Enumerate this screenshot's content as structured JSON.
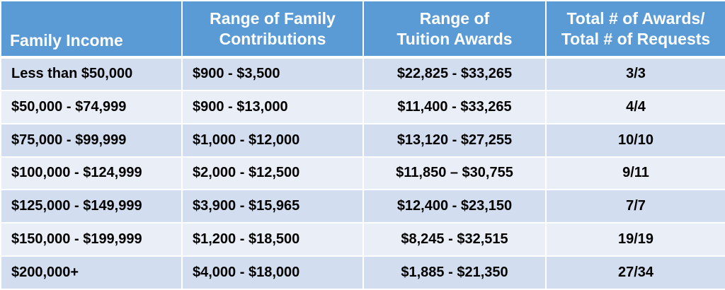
{
  "headers": {
    "family_income": "Family Income",
    "contributions_line1": "Range of Family",
    "contributions_line2": "Contributions",
    "tuition_line1": "Range of",
    "tuition_line2": "Tuition Awards",
    "awards_line1": "Total # of Awards/",
    "awards_line2": "Total # of Requests"
  },
  "rows": [
    {
      "income": "Less than $50,000",
      "contributions": "$900 - $3,500",
      "tuition": "$22,825 - $33,265",
      "awards": "3/3"
    },
    {
      "income": "$50,000 - $74,999",
      "contributions": "$900 - $13,000",
      "tuition": "$11,400 - $33,265",
      "awards": "4/4"
    },
    {
      "income": "$75,000 - $99,999",
      "contributions": "$1,000 - $12,000",
      "tuition": "$13,120 - $27,255",
      "awards": "10/10"
    },
    {
      "income": "$100,000 - $124,999",
      "contributions": "$2,000 - $12,500",
      "tuition": "$11,850 – $30,755",
      "awards": "9/11"
    },
    {
      "income": "$125,000 - $149,999",
      "contributions": "$3,900 - $15,965",
      "tuition": "$12,400 - $23,150",
      "awards": "7/7"
    },
    {
      "income": "$150,000 - $199,999",
      "contributions": "$1,200 - $18,500",
      "tuition": "$8,245 - $32,515",
      "awards": "19/19"
    },
    {
      "income": "$200,000+",
      "contributions": "$4,000 - $18,000",
      "tuition": "$1,885 - $21,350",
      "awards": "27/34"
    }
  ],
  "colors": {
    "header_bg": "#5b9bd5",
    "row_dark": "#d2deef",
    "row_light": "#eaeff7",
    "border": "#ffffff"
  }
}
